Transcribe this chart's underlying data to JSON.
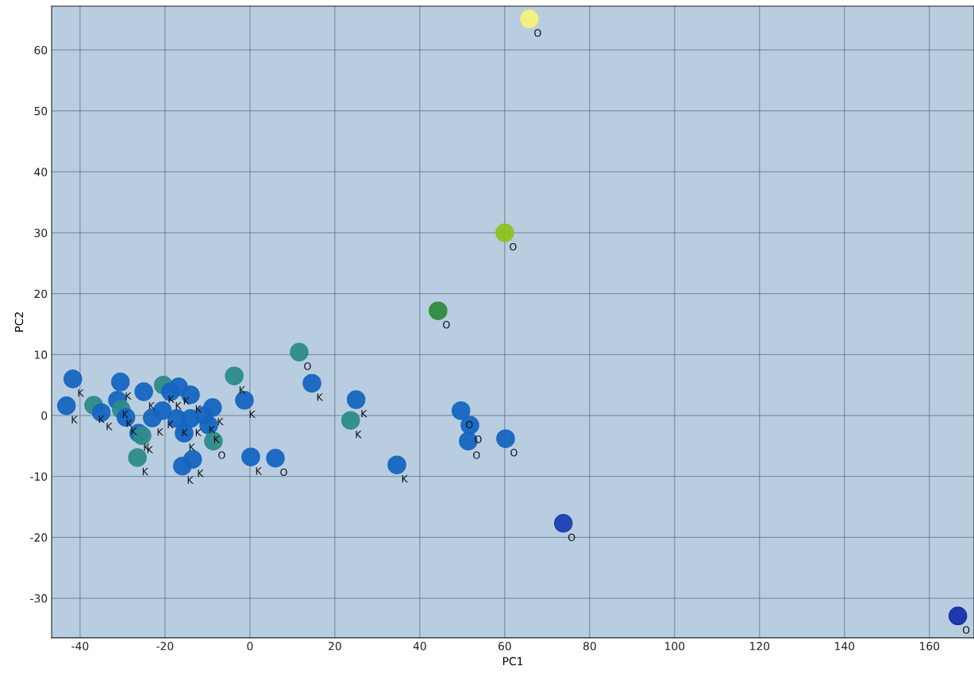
{
  "chart_data": {
    "type": "scatter",
    "xlabel": "PC1",
    "ylabel": "PC2",
    "xlim": [
      -46.7,
      170.5
    ],
    "ylim": [
      -36.5,
      67.2
    ],
    "xticks": [
      -40,
      -20,
      0,
      20,
      40,
      60,
      80,
      100,
      120,
      140,
      160
    ],
    "yticks": [
      -30,
      -20,
      -10,
      0,
      10,
      20,
      30,
      40,
      50,
      60
    ],
    "grid": true,
    "marker": "circle",
    "series": [
      {
        "x": [
          -41.7,
          -43.2,
          -30.5,
          -36.8,
          -35.0,
          -31.2,
          -30.3,
          -29.2,
          -26.2,
          -25.4,
          -26.5,
          -25.0,
          -23.0,
          -20.4,
          -18.7,
          -16.8,
          -14.0,
          -20.6,
          -17.2,
          -14.0,
          -10.8,
          -8.8,
          -9.7,
          -15.5,
          -8.6,
          -15.9,
          -13.5,
          -3.7,
          -1.3,
          0.2,
          6.0,
          11.6,
          14.6,
          25.0,
          23.7,
          34.6,
          49.7,
          51.8,
          51.4,
          60.2,
          44.3,
          60.0,
          65.8,
          73.8,
          166.7
        ],
        "values": [
          6.0,
          1.6,
          5.5,
          1.7,
          0.5,
          2.5,
          1.0,
          -0.3,
          -2.9,
          -3.3,
          -6.9,
          3.9,
          -0.4,
          5.0,
          3.9,
          4.7,
          3.4,
          0.8,
          -0.5,
          -0.5,
          0.0,
          1.3,
          -1.6,
          -2.9,
          -4.2,
          -8.3,
          -7.2,
          6.5,
          2.5,
          -6.8,
          -7.0,
          10.4,
          5.3,
          2.6,
          -0.8,
          -8.1,
          0.8,
          -1.6,
          -4.2,
          -3.8,
          17.2,
          30.0,
          65.1,
          -17.7,
          -32.9
        ],
        "colors": [
          "#1565c0",
          "#1565c0",
          "#1565c0",
          "#2e8b8a",
          "#1565c0",
          "#1565c0",
          "#2e8b8a",
          "#1565c0",
          "#1565c0",
          "#2e8b8a",
          "#2e8b8a",
          "#1565c0",
          "#1565c0",
          "#2e8b8a",
          "#1565c0",
          "#1565c0",
          "#1565c0",
          "#1565c0",
          "#1565c0",
          "#1565c0",
          "#1565c0",
          "#1565c0",
          "#1565c0",
          "#1565c0",
          "#2e8b8a",
          "#1565c0",
          "#1565c0",
          "#2e8b8a",
          "#1565c0",
          "#1565c0",
          "#1565c0",
          "#2e8b8a",
          "#1565c0",
          "#1565c0",
          "#2e8b8a",
          "#1565c0",
          "#1565c0",
          "#1565c0",
          "#1565c0",
          "#1565c0",
          "#2e8b3e",
          "#8dc21f",
          "#f5f07a",
          "#1a3fb5",
          "#1530a8"
        ],
        "value_labels": [
          "K",
          "K",
          "K",
          "K",
          "K",
          "K",
          "K",
          "K",
          "K",
          "K",
          "K",
          "K",
          "K",
          "K",
          "K",
          "K",
          "K",
          "K",
          "K",
          "K",
          "K",
          "K",
          "K",
          "K",
          "O",
          "K",
          "K",
          "K",
          "K",
          "K",
          "O",
          "O",
          "K",
          "K",
          "K",
          "K",
          "O",
          "O",
          "O",
          "O",
          "O",
          "O",
          "O",
          "O",
          "O"
        ]
      }
    ]
  }
}
